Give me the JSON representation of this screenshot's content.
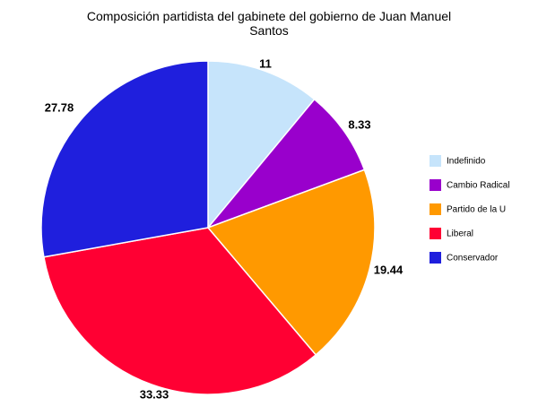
{
  "chart_data": {
    "type": "pie",
    "title_lines": [
      "Composición partidista del gabinete del gobierno de Juan Manuel",
      "Santos"
    ],
    "categories": [
      "Indefinido",
      "Cambio Radical",
      "Partido de la U",
      "Liberal",
      "Conservador"
    ],
    "values": [
      11,
      8.33,
      19.44,
      33.33,
      27.78
    ],
    "value_labels": [
      "11",
      "8.33",
      "19.44",
      "33.33",
      "27.78"
    ],
    "colors": [
      "#c6e4fb",
      "#9900cc",
      "#ff9900",
      "#ff0033",
      "#1f1fdd"
    ],
    "legend_position": "right",
    "start_angle": "top",
    "direction": "clockwise"
  }
}
